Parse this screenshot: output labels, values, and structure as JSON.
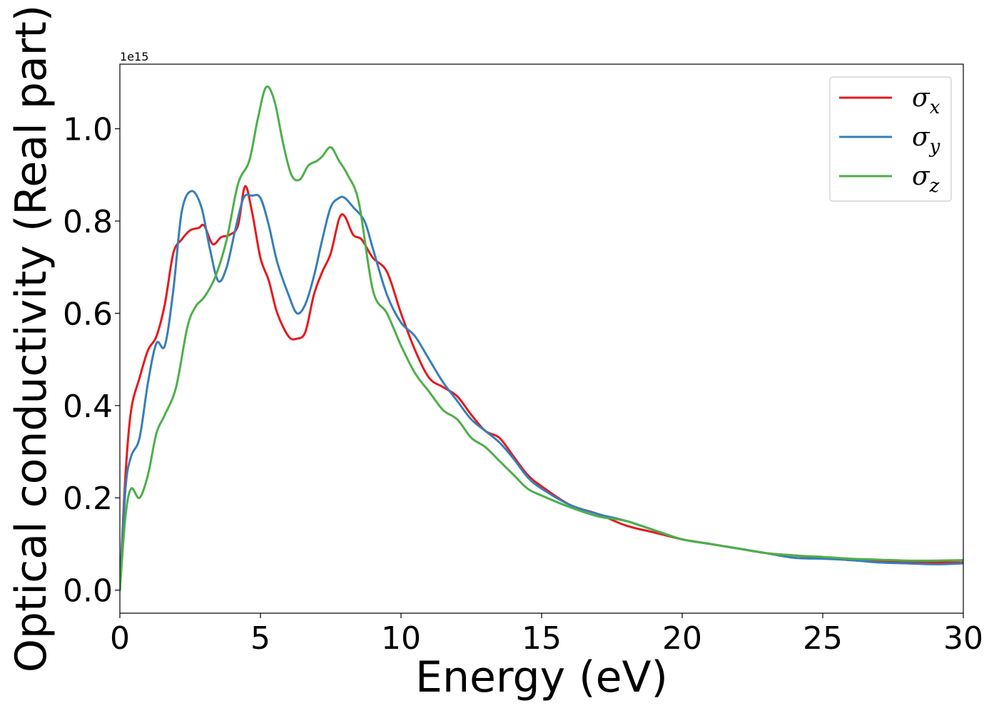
{
  "chart_data": {
    "type": "line",
    "title": "",
    "xlabel": "Energy (eV)",
    "ylabel": "Optical conductivity (Real part)",
    "y_offset_label": "1e15",
    "y_scale_factor": 1000000000000000.0,
    "xlim": [
      0,
      30
    ],
    "ylim": [
      -0.05,
      1.14
    ],
    "x_ticks": [
      0,
      5,
      10,
      15,
      20,
      25,
      30
    ],
    "x_tick_labels": [
      "0",
      "5",
      "10",
      "15",
      "20",
      "25",
      "30"
    ],
    "y_ticks": [
      0.0,
      0.2,
      0.4,
      0.6,
      0.8,
      1.0
    ],
    "y_tick_labels": [
      "0.0",
      "0.2",
      "0.4",
      "0.6",
      "0.8",
      "1.0"
    ],
    "grid": false,
    "legend_position": "top-right",
    "series": [
      {
        "name": "σx",
        "legend_base": "σ",
        "legend_sub": "x",
        "color": "#e41a1c",
        "x": [
          0,
          0.2,
          0.4,
          0.7,
          1.0,
          1.3,
          1.6,
          1.9,
          2.2,
          2.5,
          2.8,
          3.0,
          3.3,
          3.6,
          3.9,
          4.2,
          4.45,
          4.7,
          5.0,
          5.3,
          5.6,
          6.0,
          6.3,
          6.6,
          6.9,
          7.2,
          7.5,
          7.8,
          8.0,
          8.3,
          8.6,
          9.0,
          9.5,
          10.0,
          10.5,
          11.0,
          11.5,
          12.0,
          12.5,
          13.0,
          13.5,
          14.0,
          14.5,
          15.0,
          16.0,
          17.0,
          18.0,
          19.0,
          20.0,
          21.0,
          22.0,
          23.0,
          24.0,
          25.0,
          26.0,
          27.0,
          28.0,
          29.0,
          30.0
        ],
        "y": [
          0.0,
          0.25,
          0.39,
          0.46,
          0.52,
          0.55,
          0.62,
          0.73,
          0.76,
          0.78,
          0.785,
          0.79,
          0.75,
          0.765,
          0.77,
          0.79,
          0.875,
          0.82,
          0.72,
          0.67,
          0.6,
          0.55,
          0.545,
          0.56,
          0.64,
          0.69,
          0.73,
          0.805,
          0.81,
          0.77,
          0.76,
          0.72,
          0.69,
          0.6,
          0.52,
          0.46,
          0.44,
          0.42,
          0.38,
          0.345,
          0.33,
          0.29,
          0.25,
          0.225,
          0.185,
          0.165,
          0.14,
          0.125,
          0.11,
          0.1,
          0.09,
          0.08,
          0.075,
          0.07,
          0.065,
          0.062,
          0.06,
          0.06,
          0.06
        ]
      },
      {
        "name": "σy",
        "legend_base": "σ",
        "legend_sub": "y",
        "color": "#377eb8",
        "x": [
          0,
          0.2,
          0.4,
          0.7,
          1.0,
          1.3,
          1.6,
          1.9,
          2.2,
          2.55,
          2.9,
          3.2,
          3.5,
          3.8,
          4.1,
          4.4,
          4.7,
          5.0,
          5.3,
          5.6,
          6.0,
          6.3,
          6.6,
          6.9,
          7.2,
          7.5,
          7.8,
          8.0,
          8.3,
          8.7,
          9.0,
          9.5,
          10.0,
          10.5,
          11.0,
          11.5,
          12.0,
          12.5,
          13.0,
          13.5,
          14.0,
          14.5,
          15.0,
          16.0,
          17.0,
          18.0,
          19.0,
          20.0,
          21.0,
          22.0,
          23.0,
          24.0,
          25.0,
          26.0,
          27.0,
          28.0,
          29.0,
          30.0
        ],
        "y": [
          0.0,
          0.22,
          0.29,
          0.33,
          0.45,
          0.535,
          0.53,
          0.65,
          0.82,
          0.865,
          0.83,
          0.74,
          0.67,
          0.7,
          0.78,
          0.85,
          0.855,
          0.85,
          0.79,
          0.71,
          0.64,
          0.6,
          0.62,
          0.68,
          0.76,
          0.83,
          0.85,
          0.85,
          0.83,
          0.8,
          0.74,
          0.64,
          0.58,
          0.55,
          0.5,
          0.45,
          0.41,
          0.37,
          0.345,
          0.32,
          0.285,
          0.245,
          0.22,
          0.185,
          0.165,
          0.15,
          0.13,
          0.11,
          0.1,
          0.09,
          0.08,
          0.07,
          0.068,
          0.065,
          0.06,
          0.058,
          0.056,
          0.058
        ]
      },
      {
        "name": "σz",
        "legend_base": "σ",
        "legend_sub": "z",
        "color": "#4daf4a",
        "x": [
          0,
          0.2,
          0.4,
          0.7,
          1.0,
          1.3,
          1.6,
          2.0,
          2.4,
          2.7,
          3.0,
          3.4,
          3.8,
          4.2,
          4.6,
          4.9,
          5.2,
          5.5,
          5.8,
          6.1,
          6.4,
          6.7,
          7.0,
          7.2,
          7.5,
          7.8,
          8.1,
          8.5,
          9.0,
          9.5,
          10.0,
          10.5,
          11.0,
          11.5,
          12.0,
          12.5,
          13.0,
          13.5,
          14.0,
          14.5,
          15.0,
          16.0,
          17.0,
          18.0,
          19.0,
          20.0,
          21.0,
          22.0,
          23.0,
          24.0,
          25.0,
          26.0,
          27.0,
          28.0,
          29.0,
          30.0
        ],
        "y": [
          0.0,
          0.16,
          0.22,
          0.2,
          0.25,
          0.34,
          0.38,
          0.44,
          0.57,
          0.615,
          0.635,
          0.68,
          0.76,
          0.88,
          0.93,
          1.02,
          1.09,
          1.06,
          0.97,
          0.9,
          0.89,
          0.92,
          0.93,
          0.94,
          0.96,
          0.93,
          0.9,
          0.84,
          0.65,
          0.6,
          0.53,
          0.47,
          0.43,
          0.39,
          0.37,
          0.33,
          0.31,
          0.28,
          0.25,
          0.22,
          0.205,
          0.18,
          0.16,
          0.15,
          0.13,
          0.11,
          0.1,
          0.09,
          0.08,
          0.075,
          0.072,
          0.068,
          0.066,
          0.064,
          0.064,
          0.065
        ]
      }
    ]
  }
}
